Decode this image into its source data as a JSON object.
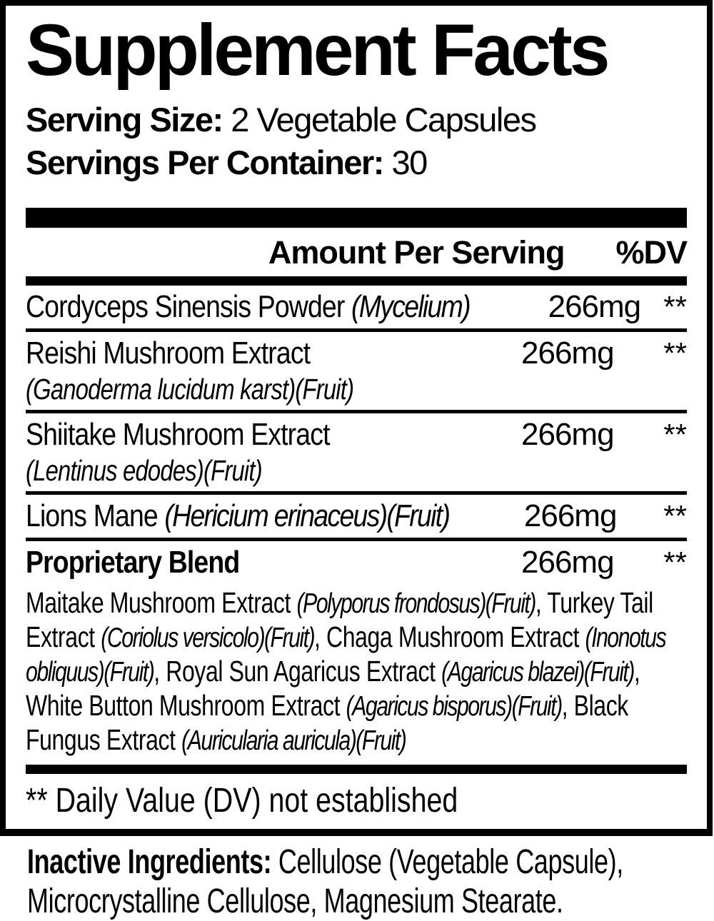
{
  "panel": {
    "title": "Supplement Facts",
    "serving_size_label": "Serving Size:",
    "serving_size_value": "2 Vegetable Capsules",
    "servings_per_container_label": "Servings Per Container:",
    "servings_per_container_value": "30",
    "header": {
      "amount": "Amount Per Serving",
      "dv": "%DV"
    },
    "rows": [
      {
        "name_segments": [
          {
            "t": "Cordyceps Sinensis Powder ",
            "i": false
          },
          {
            "t": "(Mycelium)",
            "i": true
          }
        ],
        "amount": "266mg",
        "dv": "**",
        "bold": false
      },
      {
        "name_segments": [
          {
            "t": "Reishi Mushroom Extract",
            "i": false
          }
        ],
        "subline": "(Ganoderma lucidum karst)(Fruit)",
        "amount": "266mg",
        "dv": "**",
        "bold": false
      },
      {
        "name_segments": [
          {
            "t": "Shiitake Mushroom Extract",
            "i": false
          }
        ],
        "subline": "(Lentinus edodes)(Fruit)",
        "amount": "266mg",
        "dv": "**",
        "bold": false
      },
      {
        "name_segments": [
          {
            "t": "Lions Mane ",
            "i": false
          },
          {
            "t": "(Hericium erinaceus)(Fruit)",
            "i": true
          }
        ],
        "amount": "266mg",
        "dv": "**",
        "bold": false
      },
      {
        "name_segments": [
          {
            "t": "Proprietary Blend",
            "i": false
          }
        ],
        "amount": "266mg",
        "dv": "**",
        "bold": true,
        "blend_segments": [
          {
            "t": "Maitake Mushroom Extract ",
            "i": false
          },
          {
            "t": "(Polyporus frondosus)(Fruit)",
            "i": true
          },
          {
            "t": ", Turkey Tail Extract ",
            "i": false
          },
          {
            "t": "(Coriolus versicolo)(Fruit)",
            "i": true
          },
          {
            "t": ", Chaga Mushroom Extract ",
            "i": false
          },
          {
            "t": "(Inonotus obliquus)(Fruit)",
            "i": true
          },
          {
            "t": ", Royal Sun Agaricus Extract ",
            "i": false
          },
          {
            "t": "(Agaricus blazei)(Fruit)",
            "i": true
          },
          {
            "t": ", White Button Mushroom Extract ",
            "i": false
          },
          {
            "t": "(Agaricus bisporus)(Fruit)",
            "i": true
          },
          {
            "t": ", Black Fungus Extract ",
            "i": false
          },
          {
            "t": "(Auricularia auricula)(Fruit)",
            "i": true
          }
        ]
      }
    ],
    "footnote": "** Daily Value (DV) not established"
  },
  "inactive": {
    "label": "Inactive Ingredients:",
    "value": " Cellulose (Vegetable Capsule), Microcrystalline Cellulose, Magnesium Stearate."
  },
  "colors": {
    "ink": "#000000",
    "background": "#ffffff"
  }
}
